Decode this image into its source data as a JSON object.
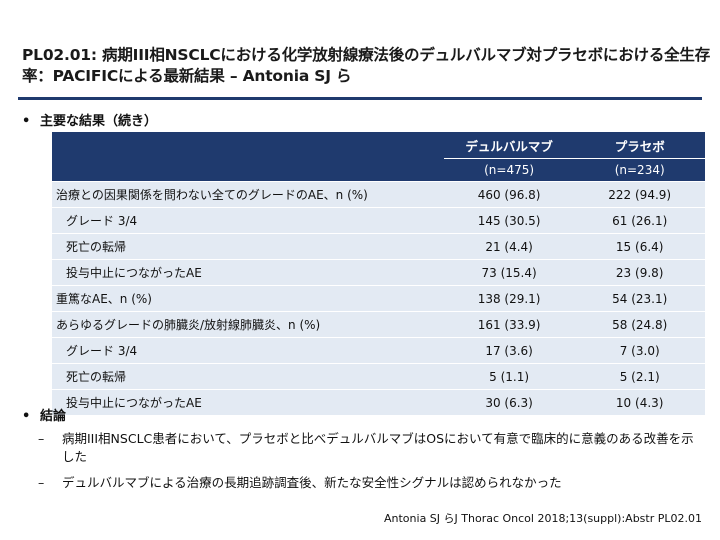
{
  "title": "PL02.01: 病期III相NSCLCにおける化学放射線療法後のデュルバルマブ対プラセボにおける全生存率：PACIFICによる最新結果 – Antonia SJ ら",
  "bullet1": "主要な結果（続き）",
  "table": {
    "col1_name": "デュルバルマブ",
    "col1_n": "(n=475)",
    "col2_name": "プラセボ",
    "col2_n": "(n=234)",
    "rows": [
      {
        "label": "治療との因果関係を問わない全てのグレードのAE、n (%)",
        "v1": "460 (96.8)",
        "v2": "222 (94.9)"
      },
      {
        "label": "グレード 3/4",
        "v1": "145 (30.5)",
        "v2": "61 (26.1)"
      },
      {
        "label": "死亡の転帰",
        "v1": "21 (4.4)",
        "v2": "15 (6.4)"
      },
      {
        "label": "投与中止につながったAE",
        "v1": "73 (15.4)",
        "v2": "23 (9.8)"
      },
      {
        "label": "重篤なAE、n (%)",
        "v1": "138 (29.1)",
        "v2": "54 (23.1)"
      },
      {
        "label": "あらゆるグレードの肺臓炎/放射線肺臓炎、n (%)",
        "v1": "161 (33.9)",
        "v2": "58 (24.8)"
      },
      {
        "label": "グレード 3/4",
        "v1": "17 (3.6)",
        "v2": "7 (3.0)"
      },
      {
        "label": "死亡の転帰",
        "v1": "5 (1.1)",
        "v2": "5 (2.1)"
      },
      {
        "label": "投与中止につながったAE",
        "v1": "30 (6.3)",
        "v2": "10 (4.3)"
      }
    ]
  },
  "bullet2": "結論",
  "conclusions": [
    "病期III相NSCLC患者において、プラセボと比べデュルバルマブはOSにおいて有意で臨床的に意義のある改善を示した",
    "デュルバルマブによる治療の長期追跡調査後、新たな安全性シグナルは認められなかった"
  ],
  "citation": "Antonia SJ らJ Thorac Oncol 2018;13(suppl):Abstr PL02.01",
  "colors": {
    "header": "#1f3a6e",
    "row": "#e3eaf3"
  }
}
